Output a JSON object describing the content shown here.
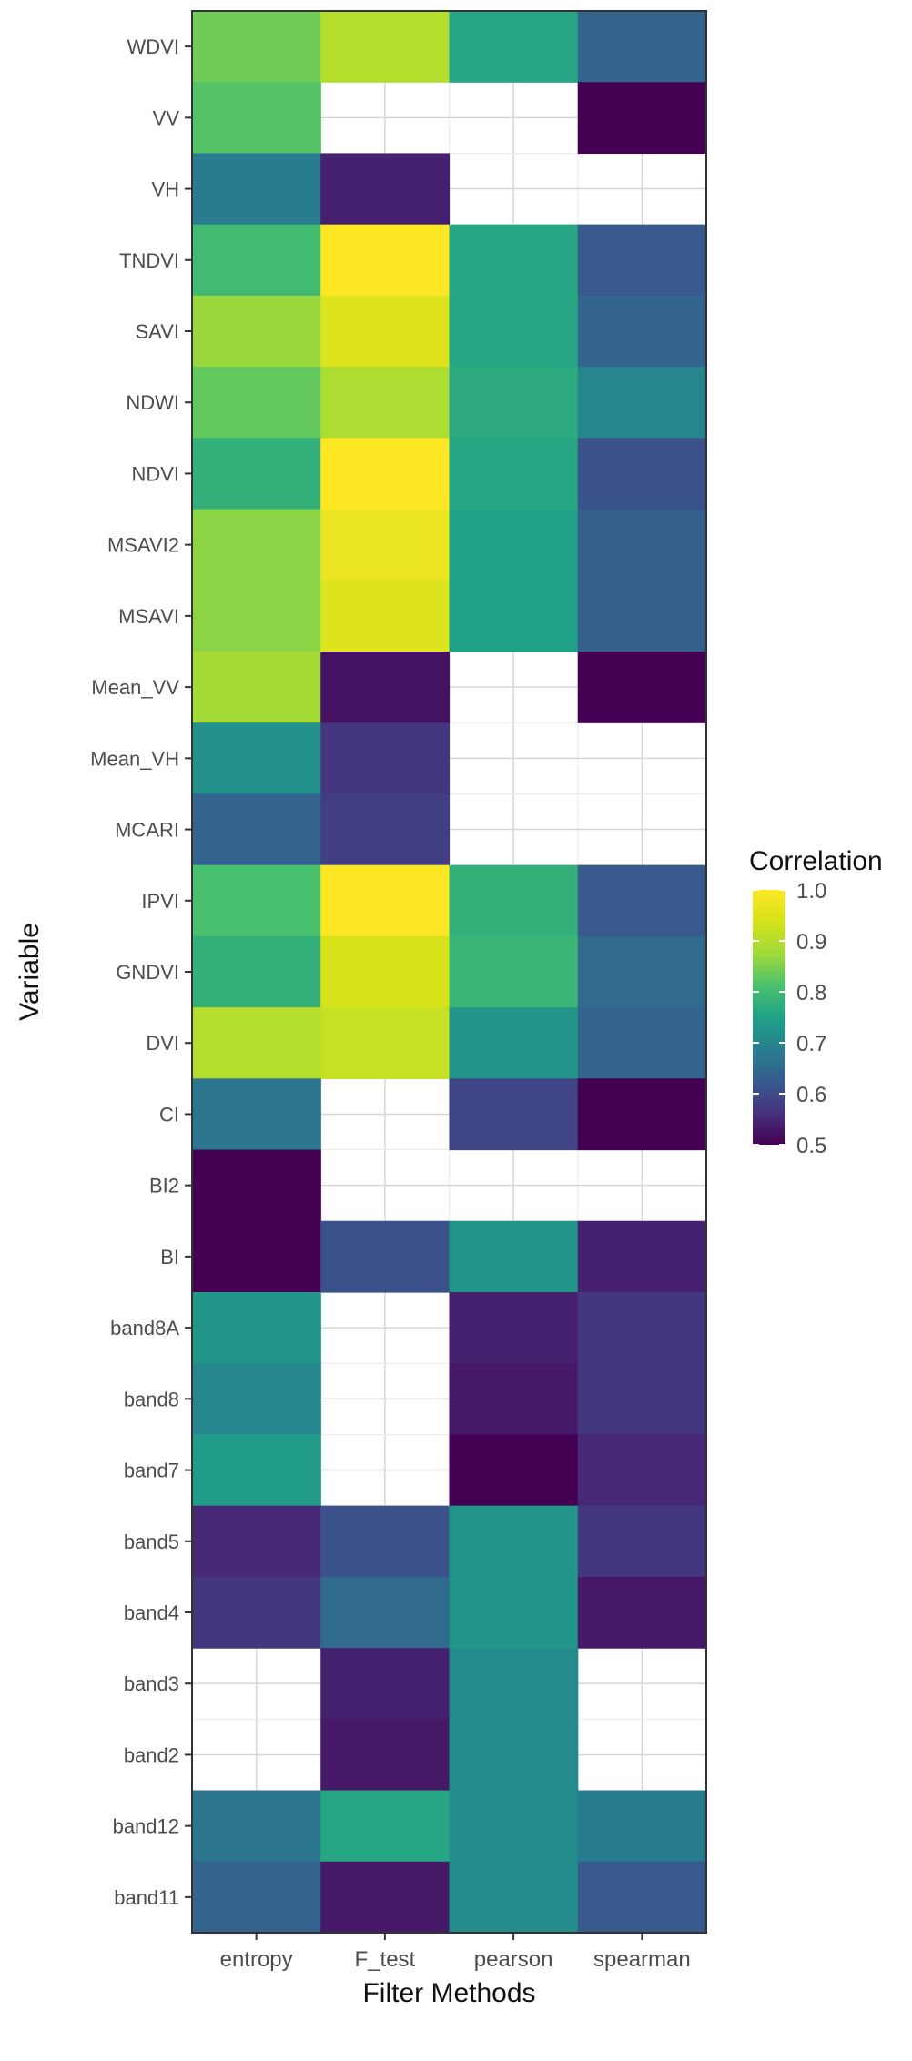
{
  "chart_data": {
    "type": "heatmap",
    "xlabel": "Filter Methods",
    "ylabel": "Variable",
    "x_categories": [
      "entropy",
      "F_test",
      "pearson",
      "spearman"
    ],
    "y_categories": [
      "WDVI",
      "VV",
      "VH",
      "TNDVI",
      "SAVI",
      "NDWI",
      "NDVI",
      "MSAVI2",
      "MSAVI",
      "Mean_VV",
      "Mean_VH",
      "MCARI",
      "IPVI",
      "GNDVI",
      "DVI",
      "CI",
      "BI2",
      "BI",
      "band8A",
      "band8",
      "band7",
      "band5",
      "band4",
      "band3",
      "band2",
      "band12",
      "band11"
    ],
    "values": [
      [
        0.84,
        0.9,
        0.76,
        0.64
      ],
      [
        0.82,
        null,
        null,
        0.5
      ],
      [
        0.68,
        0.54,
        null,
        null
      ],
      [
        0.8,
        1.0,
        0.76,
        0.62
      ],
      [
        0.87,
        0.95,
        0.76,
        0.64
      ],
      [
        0.83,
        0.89,
        0.77,
        0.7
      ],
      [
        0.78,
        1.0,
        0.76,
        0.61
      ],
      [
        0.86,
        0.97,
        0.75,
        0.63
      ],
      [
        0.86,
        0.95,
        0.75,
        0.63
      ],
      [
        0.88,
        0.52,
        null,
        0.5
      ],
      [
        0.72,
        0.57,
        null,
        null
      ],
      [
        0.64,
        0.58,
        null,
        null
      ],
      [
        0.81,
        1.0,
        0.78,
        0.62
      ],
      [
        0.78,
        0.94,
        0.79,
        0.65
      ],
      [
        0.9,
        0.92,
        0.73,
        0.64
      ],
      [
        0.67,
        null,
        0.59,
        0.5
      ],
      [
        0.5,
        null,
        null,
        null
      ],
      [
        0.5,
        0.61,
        0.73,
        0.54
      ],
      [
        0.73,
        null,
        0.54,
        0.57
      ],
      [
        0.7,
        null,
        0.53,
        0.57
      ],
      [
        0.74,
        null,
        0.5,
        0.55
      ],
      [
        0.55,
        0.61,
        0.73,
        0.57
      ],
      [
        0.57,
        0.65,
        0.73,
        0.53
      ],
      [
        null,
        0.54,
        0.71,
        null
      ],
      [
        null,
        0.53,
        0.71,
        null
      ],
      [
        0.67,
        0.76,
        0.71,
        0.68
      ],
      [
        0.64,
        0.53,
        0.71,
        0.62
      ]
    ],
    "colorbar": {
      "title": "Correlation",
      "min": 0.5,
      "max": 1.0,
      "ticks": [
        "1.0",
        "0.9",
        "0.8",
        "0.7",
        "0.6",
        "0.5"
      ],
      "colormap": "viridis"
    },
    "grid": true
  }
}
